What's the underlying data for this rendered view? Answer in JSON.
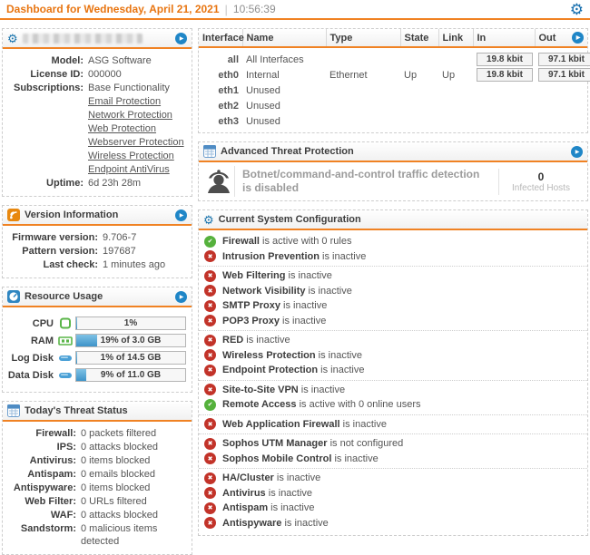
{
  "icons": {
    "gear": "⚙",
    "play": "▶",
    "check": "✔",
    "cross": "✖"
  },
  "colors": {
    "orange": "#f08223",
    "orange_text": "#e87511",
    "link_orange": "#f5a048",
    "blue_button": "#1f86c7",
    "green": "#55b13c",
    "red": "#c23329",
    "up_green": "#2da12d"
  },
  "header": {
    "title": "Dashboard for Wednesday, April 21, 2021",
    "time": "10:56:39"
  },
  "system_box": {
    "rows": [
      {
        "label": "Model:",
        "value": "ASG Software",
        "type": "text"
      },
      {
        "label": "License ID:",
        "value": "000000",
        "type": "text"
      },
      {
        "label": "Subscriptions:",
        "value": "Base Functionality",
        "type": "text"
      },
      {
        "label": "",
        "value": "Email Protection",
        "type": "link"
      },
      {
        "label": "",
        "value": "Network Protection",
        "type": "link"
      },
      {
        "label": "",
        "value": "Web Protection",
        "type": "link"
      },
      {
        "label": "",
        "value": "Webserver Protection",
        "type": "link"
      },
      {
        "label": "",
        "value": "Wireless Protection",
        "type": "link"
      },
      {
        "label": "",
        "value": "Endpoint AntiVirus",
        "type": "link"
      },
      {
        "label": "Uptime:",
        "value": "6d 23h 28m",
        "type": "text"
      }
    ]
  },
  "version_box": {
    "title": "Version Information",
    "rows": [
      {
        "label": "Firmware version:",
        "value": "9.706-7"
      },
      {
        "label": "Pattern version:",
        "value": "197687"
      },
      {
        "label": "Last check:",
        "value": "1 minutes ago"
      }
    ]
  },
  "resource_box": {
    "title": "Resource Usage",
    "rows": [
      {
        "label": "CPU",
        "icon": "cpu-icon",
        "percent": 1,
        "text": "1%"
      },
      {
        "label": "RAM",
        "icon": "ram-icon",
        "percent": 19,
        "text": "19% of 3.0 GB"
      },
      {
        "label": "Log Disk",
        "icon": "disk-icon",
        "percent": 1,
        "text": "1% of 14.5 GB"
      },
      {
        "label": "Data Disk",
        "icon": "disk-icon",
        "percent": 9,
        "text": "9% of 11.0 GB"
      }
    ]
  },
  "threat_box": {
    "title": "Today's Threat Status",
    "rows": [
      {
        "label": "Firewall:",
        "value": "0 packets filtered"
      },
      {
        "label": "IPS:",
        "value": "0 attacks blocked"
      },
      {
        "label": "Antivirus:",
        "value": "0 items blocked"
      },
      {
        "label": "Antispam:",
        "value": "0 emails blocked"
      },
      {
        "label": "Antispyware:",
        "value": "0 items blocked"
      },
      {
        "label": "Web Filter:",
        "value": "0 URLs filtered"
      },
      {
        "label": "WAF:",
        "value": "0 attacks blocked"
      },
      {
        "label": "Sandstorm:",
        "value": "0 malicious items detected"
      }
    ]
  },
  "interface_table": {
    "columns": [
      "Interface",
      "Name",
      "Type",
      "State",
      "Link",
      "In",
      "Out"
    ],
    "rows": [
      {
        "interface": "all",
        "name": "All Interfaces",
        "type": "",
        "state": "",
        "link": "",
        "in": "19.8 kbit",
        "out": "97.1 kbit"
      },
      {
        "interface": "eth0",
        "name": "Internal",
        "type": "Ethernet",
        "state": "Up",
        "link": "Up",
        "in": "19.8 kbit",
        "out": "97.1 kbit"
      },
      {
        "interface": "eth1",
        "name": "Unused",
        "type": "",
        "state": "",
        "link": "",
        "in": "",
        "out": ""
      },
      {
        "interface": "eth2",
        "name": "Unused",
        "type": "",
        "state": "",
        "link": "",
        "in": "",
        "out": ""
      },
      {
        "interface": "eth3",
        "name": "Unused",
        "type": "",
        "state": "",
        "link": "",
        "in": "",
        "out": ""
      }
    ]
  },
  "atp_box": {
    "title": "Advanced Threat Protection",
    "message": "Botnet/command-and-control traffic detection is disabled",
    "stat_value": "0",
    "stat_label": "Infected Hosts"
  },
  "config_box": {
    "title": "Current System Configuration",
    "groups": [
      [
        {
          "status": "active",
          "name": "Firewall",
          "rest": "is active with 0 rules"
        },
        {
          "status": "inactive",
          "name": "Intrusion Prevention",
          "rest": "is inactive"
        }
      ],
      [
        {
          "status": "inactive",
          "name": "Web Filtering",
          "rest": "is inactive"
        },
        {
          "status": "inactive",
          "name": "Network Visibility",
          "rest": "is inactive"
        },
        {
          "status": "inactive",
          "name": "SMTP Proxy",
          "rest": "is inactive"
        },
        {
          "status": "inactive",
          "name": "POP3 Proxy",
          "rest": "is inactive"
        }
      ],
      [
        {
          "status": "inactive",
          "name": "RED",
          "rest": "is inactive"
        },
        {
          "status": "inactive",
          "name": "Wireless Protection",
          "rest": "is inactive"
        },
        {
          "status": "inactive",
          "name": "Endpoint Protection",
          "rest": "is inactive"
        }
      ],
      [
        {
          "status": "inactive",
          "name": "Site-to-Site VPN",
          "rest": "is inactive"
        },
        {
          "status": "active",
          "name": "Remote Access",
          "rest": "is active with 0 online users"
        }
      ],
      [
        {
          "status": "inactive",
          "name": "Web Application Firewall",
          "rest": "is inactive"
        }
      ],
      [
        {
          "status": "inactive",
          "name": "Sophos UTM Manager",
          "rest": "is not configured"
        },
        {
          "status": "inactive",
          "name": "Sophos Mobile Control",
          "rest": "is inactive"
        }
      ],
      [
        {
          "status": "inactive",
          "name": "HA/Cluster",
          "rest": "is inactive"
        },
        {
          "status": "inactive",
          "name": "Antivirus",
          "rest": "is inactive"
        },
        {
          "status": "inactive",
          "name": "Antispam",
          "rest": "is inactive"
        },
        {
          "status": "inactive",
          "name": "Antispyware",
          "rest": "is inactive"
        }
      ]
    ]
  }
}
